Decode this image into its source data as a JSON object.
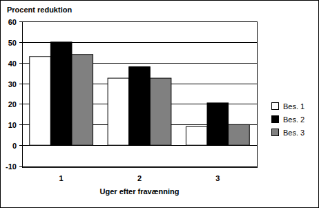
{
  "chart_data": {
    "type": "bar",
    "title": "Procent reduktion",
    "x_label": "Uger efter fravænning",
    "categories": [
      "1",
      "2",
      "3"
    ],
    "series": [
      {
        "name": "Bes. 1",
        "color": "#ffffff",
        "values": [
          43,
          32.5,
          9
        ]
      },
      {
        "name": "Bes. 2",
        "color": "#000000",
        "values": [
          50,
          38,
          20.5
        ]
      },
      {
        "name": "Bes. 3",
        "color": "#808080",
        "values": [
          44,
          32.5,
          10
        ]
      }
    ],
    "ylim": [
      -10,
      60
    ],
    "yticks": [
      -10,
      0,
      10,
      20,
      30,
      40,
      50,
      60
    ],
    "grid": true,
    "legend": "right"
  }
}
